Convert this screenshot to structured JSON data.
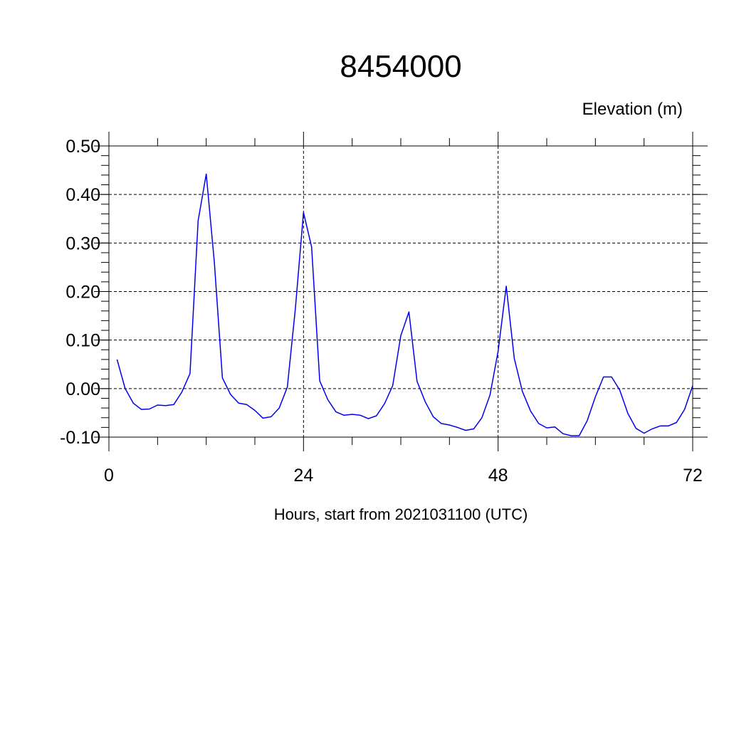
{
  "chart_data": {
    "type": "line",
    "title": "8454000",
    "ylabel": "Elevation (m)",
    "xlabel": "Hours, start from 2021031100 (UTC)",
    "xlim": [
      0,
      72
    ],
    "ylim": [
      -0.1,
      0.5
    ],
    "x_ticks": [
      0,
      24,
      48,
      72
    ],
    "x_tick_labels": [
      "0",
      "24",
      "48",
      "72"
    ],
    "y_ticks": [
      -0.1,
      0.0,
      0.1,
      0.2,
      0.3,
      0.4,
      0.5
    ],
    "y_tick_labels": [
      "-0.10",
      "0.00",
      "0.10",
      "0.20",
      "0.30",
      "0.40",
      "0.50"
    ],
    "grid": true,
    "series": [
      {
        "color": "#0000ee",
        "x": [
          1,
          2,
          3,
          4,
          5,
          6,
          7,
          8,
          9,
          10,
          11,
          12,
          13,
          14,
          15,
          16,
          17,
          18,
          19,
          20,
          21,
          22,
          23,
          24,
          25,
          26,
          27,
          28,
          29,
          30,
          31,
          32,
          33,
          34,
          35,
          36,
          37,
          38,
          39,
          40,
          41,
          42,
          43,
          44,
          45,
          46,
          47,
          48,
          49,
          50,
          51,
          52,
          53,
          54,
          55,
          56,
          57,
          58,
          59,
          60,
          61,
          62,
          63,
          64,
          65,
          66,
          67,
          68,
          69,
          70,
          71,
          72
        ],
        "values": [
          0.06,
          0.0,
          -0.03,
          -0.043,
          -0.042,
          -0.034,
          -0.035,
          -0.033,
          -0.007,
          0.031,
          0.346,
          0.442,
          0.26,
          0.022,
          -0.012,
          -0.03,
          -0.033,
          -0.045,
          -0.061,
          -0.058,
          -0.04,
          0.003,
          0.165,
          0.363,
          0.292,
          0.016,
          -0.023,
          -0.048,
          -0.055,
          -0.053,
          -0.055,
          -0.062,
          -0.056,
          -0.031,
          0.006,
          0.109,
          0.158,
          0.015,
          -0.027,
          -0.058,
          -0.072,
          -0.075,
          -0.08,
          -0.086,
          -0.083,
          -0.06,
          -0.013,
          0.077,
          0.211,
          0.062,
          -0.006,
          -0.046,
          -0.072,
          -0.081,
          -0.079,
          -0.093,
          -0.097,
          -0.097,
          -0.066,
          -0.017,
          0.024,
          0.024,
          -0.003,
          -0.051,
          -0.082,
          -0.092,
          -0.083,
          -0.077,
          -0.077,
          -0.07,
          -0.043,
          0.006
        ]
      }
    ]
  }
}
